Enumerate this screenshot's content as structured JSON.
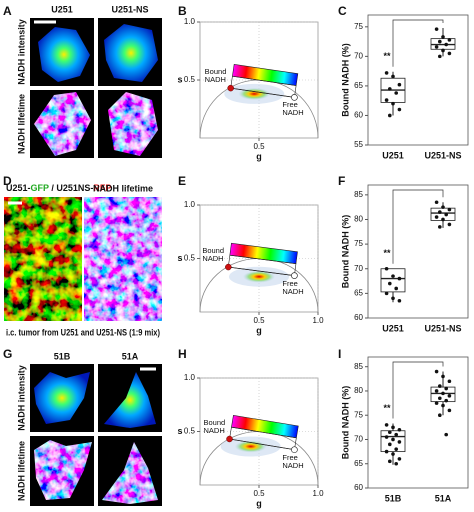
{
  "panel_labels": [
    "A",
    "B",
    "C",
    "D",
    "E",
    "F",
    "G",
    "H",
    "I"
  ],
  "figure_a": {
    "columns": [
      "U251",
      "U251-NS"
    ],
    "rows": [
      "NADH intensity",
      "NADH lifetime"
    ]
  },
  "figure_d": {
    "legend_parts": [
      {
        "text": "U251-",
        "color": "#111111"
      },
      {
        "text": "GFP",
        "color": "#22aa22"
      },
      {
        "text": " / U251NS-",
        "color": "#111111"
      },
      {
        "text": "RFP",
        "color": "#dd1111"
      }
    ],
    "right_title": "NADH lifetime",
    "caption": "i.c. tumor from U251 and U251-NS (1:9 mix)"
  },
  "figure_g": {
    "columns": [
      "51B",
      "51A"
    ],
    "rows": [
      "NADH intensity",
      "NADH lifetime"
    ]
  },
  "chart_data": [
    {
      "type": "phasor",
      "xlabel": "g",
      "ylabel": "s",
      "xlim": [
        0,
        1
      ],
      "ylim": [
        0,
        1
      ],
      "xticks": [
        0.5
      ],
      "yticks": [
        0.5,
        {
          "value": 1,
          "label": "1.0"
        }
      ],
      "grid": true,
      "bound": {
        "label": "Bound NADH",
        "g": 0.26,
        "s": 0.43
      },
      "free": {
        "label": "Free NADH",
        "g": 0.8,
        "s": 0.35
      },
      "cloud": {
        "g": 0.46,
        "s": 0.38
      }
    },
    {
      "type": "box",
      "ylabel": "Bound NADH (%)",
      "categories": [
        "U251",
        "U251-NS"
      ],
      "ylim": [
        55,
        77
      ],
      "yticks": [
        55,
        60,
        65,
        70,
        75
      ],
      "annotation": "**",
      "boxes": [
        {
          "min": 60,
          "q1": 62.2,
          "median": 64.3,
          "q3": 66.3,
          "max": 67.4
        },
        {
          "min": 70,
          "q1": 71.2,
          "median": 72,
          "q3": 73,
          "max": 74.8
        }
      ],
      "points": [
        [
          67.2,
          66.6,
          65.2,
          64.5,
          63.8,
          62.6,
          62,
          61,
          60
        ],
        [
          74.6,
          73.3,
          72.8,
          72.5,
          72,
          71.6,
          71,
          70.5,
          70
        ]
      ]
    },
    {
      "type": "phasor",
      "xlabel": "g",
      "ylabel": "s",
      "xlim": [
        0,
        1
      ],
      "ylim": [
        0,
        1
      ],
      "xticks": [
        0.5,
        {
          "value": 1,
          "label": "1.0"
        }
      ],
      "yticks": [
        0.5,
        {
          "value": 1,
          "label": "1.0"
        }
      ],
      "grid": true,
      "bound": {
        "label": "Bound NADH",
        "g": 0.24,
        "s": 0.42
      },
      "free": {
        "label": "Free NADH",
        "g": 0.8,
        "s": 0.34
      },
      "cloud": {
        "g": 0.5,
        "s": 0.33
      }
    },
    {
      "type": "box",
      "ylabel": "Bound NADH (%)",
      "categories": [
        "U251",
        "U251-NS"
      ],
      "ylim": [
        60,
        87
      ],
      "yticks": [
        60,
        65,
        70,
        75,
        80,
        85
      ],
      "annotation": "**",
      "boxes": [
        {
          "min": 63.2,
          "q1": 65.3,
          "median": 68,
          "q3": 70,
          "max": 70
        },
        {
          "min": 78.3,
          "q1": 79.8,
          "median": 81.3,
          "q3": 82.3,
          "max": 83.5
        }
      ],
      "points": [
        [
          70,
          68.5,
          68,
          67,
          66,
          65,
          64,
          63.5
        ],
        [
          83.5,
          82.5,
          82,
          81.5,
          81,
          80.5,
          80,
          79,
          78.5
        ]
      ]
    },
    {
      "type": "phasor",
      "xlabel": "g",
      "ylabel": "s",
      "xlim": [
        0,
        1
      ],
      "ylim": [
        0,
        1
      ],
      "xticks": [
        0.5,
        {
          "value": 1,
          "label": "1.0"
        }
      ],
      "yticks": [
        0.5,
        {
          "value": 1,
          "label": "1.0"
        }
      ],
      "grid": true,
      "bound": {
        "label": "Bound NADH",
        "g": 0.25,
        "s": 0.43
      },
      "free": {
        "label": "Free NADH",
        "g": 0.8,
        "s": 0.33
      },
      "cloud": {
        "g": 0.43,
        "s": 0.36
      }
    },
    {
      "type": "box",
      "ylabel": "Bound NADH (%)",
      "categories": [
        "51B",
        "51A"
      ],
      "ylim": [
        60,
        87
      ],
      "yticks": [
        60,
        65,
        70,
        75,
        80,
        85
      ],
      "annotation": "**",
      "boxes": [
        {
          "min": 64.8,
          "q1": 67.5,
          "median": 70.6,
          "q3": 71.8,
          "max": 73.3
        },
        {
          "min": 75,
          "q1": 77.8,
          "median": 79.5,
          "q3": 80.8,
          "max": 84
        }
      ],
      "points": [
        [
          73,
          72.5,
          72,
          71.5,
          71,
          70.5,
          70,
          69.5,
          69,
          68,
          67.5,
          67,
          66,
          65.5,
          65
        ],
        [
          84,
          83,
          82,
          81,
          80.5,
          80,
          79.5,
          79,
          78.5,
          78,
          77.5,
          77,
          76,
          75,
          71
        ]
      ]
    }
  ]
}
